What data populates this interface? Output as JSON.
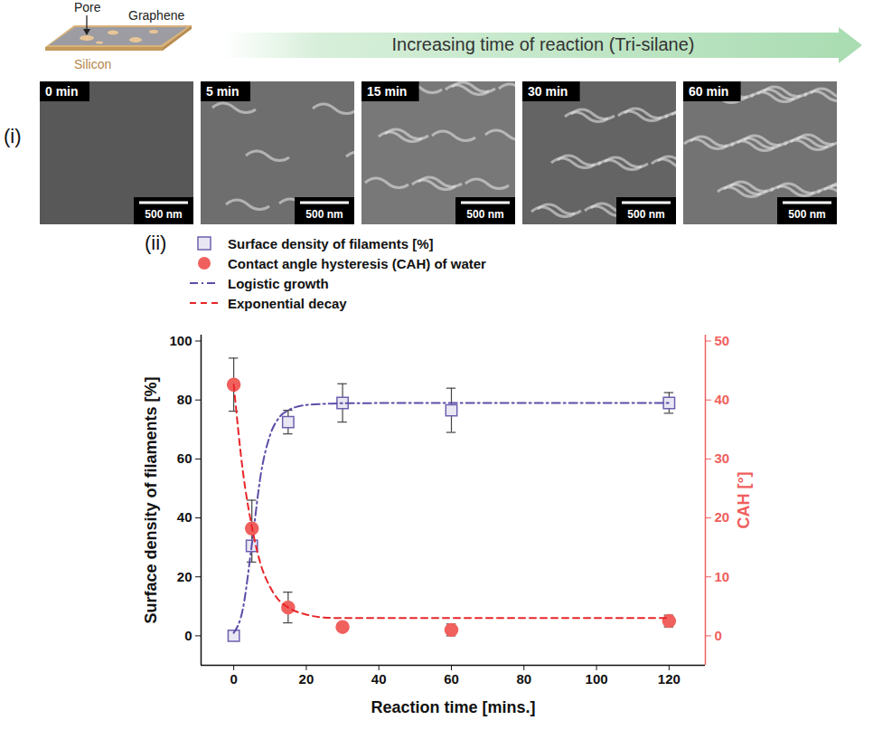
{
  "schematic": {
    "labels": [
      "Pore",
      "Graphene",
      "Silicon"
    ],
    "arrow_text": "Increasing time of reaction (Tri-silane)"
  },
  "panel_i": {
    "label": "(i)",
    "images": [
      {
        "time": "0 min",
        "scale_bar": "500 nm"
      },
      {
        "time": "5 min",
        "scale_bar": "500 nm"
      },
      {
        "time": "15 min",
        "scale_bar": "500 nm"
      },
      {
        "time": "30 min",
        "scale_bar": "500 nm"
      },
      {
        "time": "60 min",
        "scale_bar": "500 nm"
      }
    ]
  },
  "chart_data": {
    "panel_label": "(ii)",
    "type": "scatter",
    "xlabel": "Reaction time [mins.]",
    "ylabel": "Surface density of filaments [%]",
    "y2label": "CAH [°]",
    "xlim": [
      -9,
      130
    ],
    "xticks": [
      0,
      20,
      40,
      60,
      80,
      100,
      120
    ],
    "ylim": [
      -10,
      102
    ],
    "yticks": [
      0,
      20,
      40,
      60,
      80,
      100
    ],
    "y2lim": [
      -5,
      51
    ],
    "y2ticks": [
      0,
      10,
      20,
      30,
      40,
      50
    ],
    "legend": "top-left",
    "series": [
      {
        "name": "Surface density of filaments [%]",
        "type": "scatter",
        "marker": "square",
        "color": "#6f5fb0",
        "axis": "y",
        "x": [
          0,
          5,
          15,
          30,
          60,
          120
        ],
        "values": [
          0,
          30.5,
          72.5,
          79,
          76.5,
          79
        ],
        "errors_minus": [
          0,
          5.5,
          4,
          6.5,
          7.5,
          3.5
        ],
        "errors_plus": [
          0,
          15.5,
          4,
          6.5,
          7.5,
          3.5
        ]
      },
      {
        "name": "Contact angle hysteresis (CAH) of water",
        "type": "scatter",
        "marker": "circle",
        "color": "#f0605d",
        "axis": "y2",
        "x": [
          0,
          5,
          15,
          30,
          60,
          120
        ],
        "values": [
          42.6,
          18.2,
          4.8,
          1.5,
          1,
          2.5
        ],
        "errors_minus": [
          4.5,
          0,
          2.6,
          0,
          1,
          1
        ],
        "errors_plus": [
          4.5,
          0,
          2.6,
          0,
          1,
          1
        ]
      },
      {
        "name": "Logistic growth",
        "type": "line",
        "line_style": "dashdot",
        "color": "#5a4fa8",
        "axis": "y",
        "x": [
          0,
          2.5,
          5,
          7.5,
          10,
          12.5,
          15,
          20,
          25,
          30,
          60,
          120
        ],
        "values": [
          1,
          9,
          31,
          55,
          68,
          74,
          76.5,
          78.3,
          78.7,
          78.9,
          79,
          79
        ]
      },
      {
        "name": "Exponential decay",
        "type": "line",
        "line_style": "dashed",
        "color": "#e8262a",
        "axis": "y2",
        "x": [
          0,
          2.5,
          5,
          7.5,
          10,
          12.5,
          15,
          20,
          25,
          30,
          60,
          120
        ],
        "values": [
          42.6,
          28,
          18.5,
          12,
          8.3,
          6,
          4.8,
          3.6,
          3.1,
          3,
          3,
          3
        ]
      }
    ]
  }
}
